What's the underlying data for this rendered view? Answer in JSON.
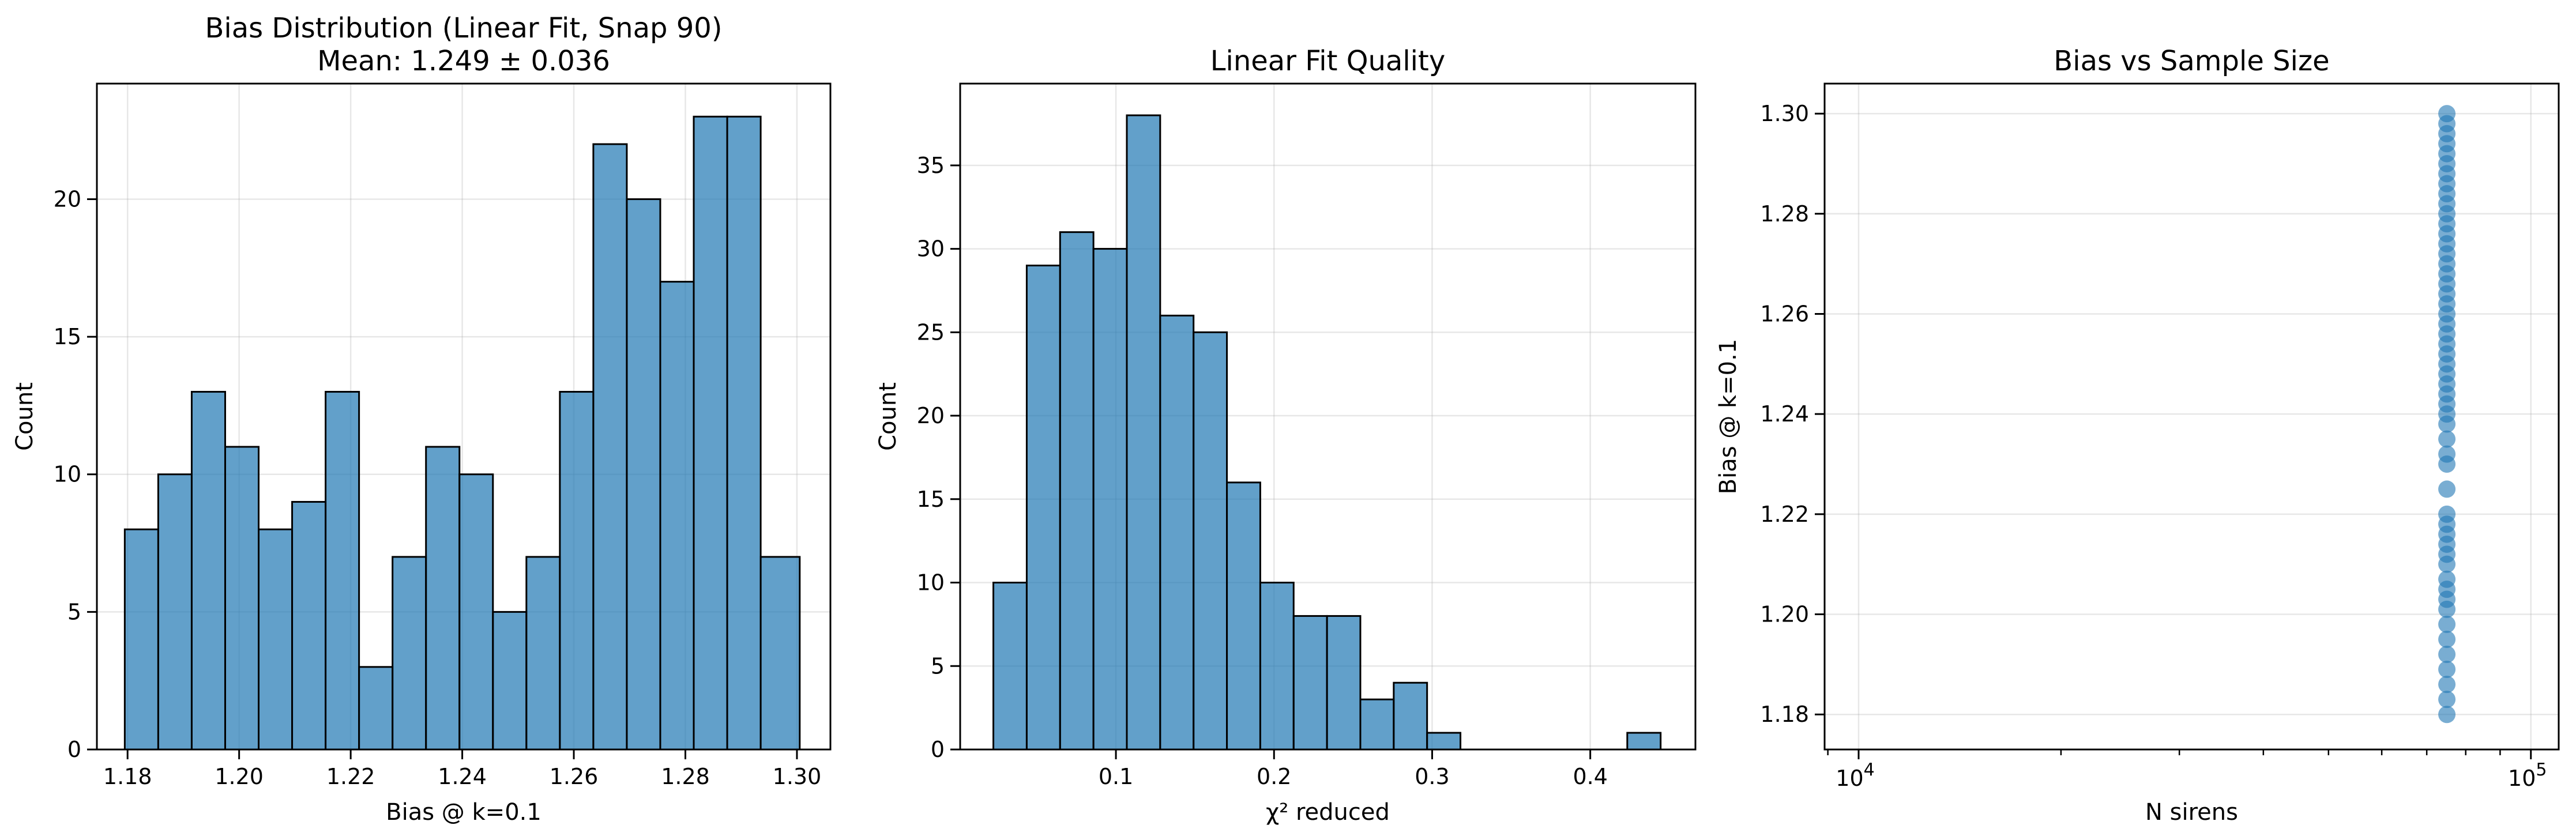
{
  "chart_data": [
    {
      "type": "bar",
      "title": "Bias Distribution (Linear Fit, Snap 90)",
      "subtitle": "Mean: 1.249 ± 0.036",
      "xlabel": "Bias @ k=0.1",
      "ylabel": "Count",
      "xlim": [
        1.1745,
        1.306
      ],
      "ylim": [
        0,
        24.2
      ],
      "xticks": [
        1.18,
        1.2,
        1.22,
        1.24,
        1.26,
        1.28,
        1.3
      ],
      "xticklabels": [
        "1.18",
        "1.20",
        "1.22",
        "1.24",
        "1.26",
        "1.28",
        "1.30"
      ],
      "yticks": [
        0,
        5,
        10,
        15,
        20
      ],
      "yticklabels": [
        "0",
        "5",
        "10",
        "15",
        "20"
      ],
      "grid": true,
      "bin_edges": [
        1.1795,
        1.1855,
        1.1915,
        1.1975,
        1.2035,
        1.2095,
        1.2155,
        1.2215,
        1.2275,
        1.2335,
        1.2395,
        1.2455,
        1.2515,
        1.2575,
        1.2635,
        1.2695,
        1.2755,
        1.2815,
        1.2875,
        1.2935,
        1.3005
      ],
      "counts": [
        8,
        10,
        13,
        11,
        8,
        9,
        13,
        3,
        7,
        11,
        10,
        5,
        7,
        13,
        22,
        20,
        17,
        23,
        23,
        7
      ],
      "color": "#1f77b4"
    },
    {
      "type": "bar",
      "title": "Linear Fit Quality",
      "xlabel": "χ² reduced",
      "ylabel": "Count",
      "xlim": [
        0.0015,
        0.4665
      ],
      "ylim": [
        0,
        39.9
      ],
      "xticks": [
        0.1,
        0.2,
        0.3,
        0.4
      ],
      "xticklabels": [
        "0.1",
        "0.2",
        "0.3",
        "0.4"
      ],
      "yticks": [
        0,
        5,
        10,
        15,
        20,
        25,
        30,
        35
      ],
      "yticklabels": [
        "0",
        "5",
        "10",
        "15",
        "20",
        "25",
        "30",
        "35"
      ],
      "grid": true,
      "bin_edges": [
        0.0225,
        0.0436,
        0.0647,
        0.0858,
        0.1069,
        0.128,
        0.1491,
        0.1702,
        0.1913,
        0.2124,
        0.2335,
        0.2546,
        0.2757,
        0.2968,
        0.3179,
        0.339,
        0.3601,
        0.3812,
        0.4023,
        0.4234,
        0.4445
      ],
      "counts": [
        10,
        29,
        31,
        30,
        38,
        26,
        25,
        16,
        10,
        8,
        8,
        3,
        4,
        1,
        0,
        0,
        0,
        0,
        0,
        1
      ],
      "color": "#1f77b4"
    },
    {
      "type": "scatter",
      "title": "Bias vs Sample Size",
      "xlabel": "N sirens",
      "ylabel": "Bias @ k=0.1",
      "xscale": "log",
      "xlim": [
        8900,
        110000
      ],
      "ylim": [
        1.173,
        1.306
      ],
      "xticks": [
        10000,
        100000
      ],
      "xticklabels": [
        {
          "base": "10",
          "exp": "4"
        },
        {
          "base": "10",
          "exp": "5"
        }
      ],
      "yticks": [
        1.18,
        1.2,
        1.22,
        1.24,
        1.26,
        1.28,
        1.3
      ],
      "yticklabels": [
        "1.18",
        "1.20",
        "1.22",
        "1.24",
        "1.26",
        "1.28",
        "1.30"
      ],
      "grid": true,
      "x_value": 75000,
      "y_values": [
        1.18,
        1.183,
        1.186,
        1.189,
        1.192,
        1.195,
        1.198,
        1.201,
        1.203,
        1.205,
        1.207,
        1.21,
        1.212,
        1.214,
        1.216,
        1.218,
        1.22,
        1.225,
        1.23,
        1.232,
        1.235,
        1.238,
        1.24,
        1.242,
        1.244,
        1.246,
        1.248,
        1.25,
        1.252,
        1.254,
        1.256,
        1.258,
        1.26,
        1.262,
        1.264,
        1.266,
        1.268,
        1.27,
        1.272,
        1.274,
        1.276,
        1.278,
        1.28,
        1.282,
        1.284,
        1.286,
        1.288,
        1.29,
        1.292,
        1.294,
        1.296,
        1.298,
        1.3
      ],
      "color": "#1f77b4"
    }
  ]
}
